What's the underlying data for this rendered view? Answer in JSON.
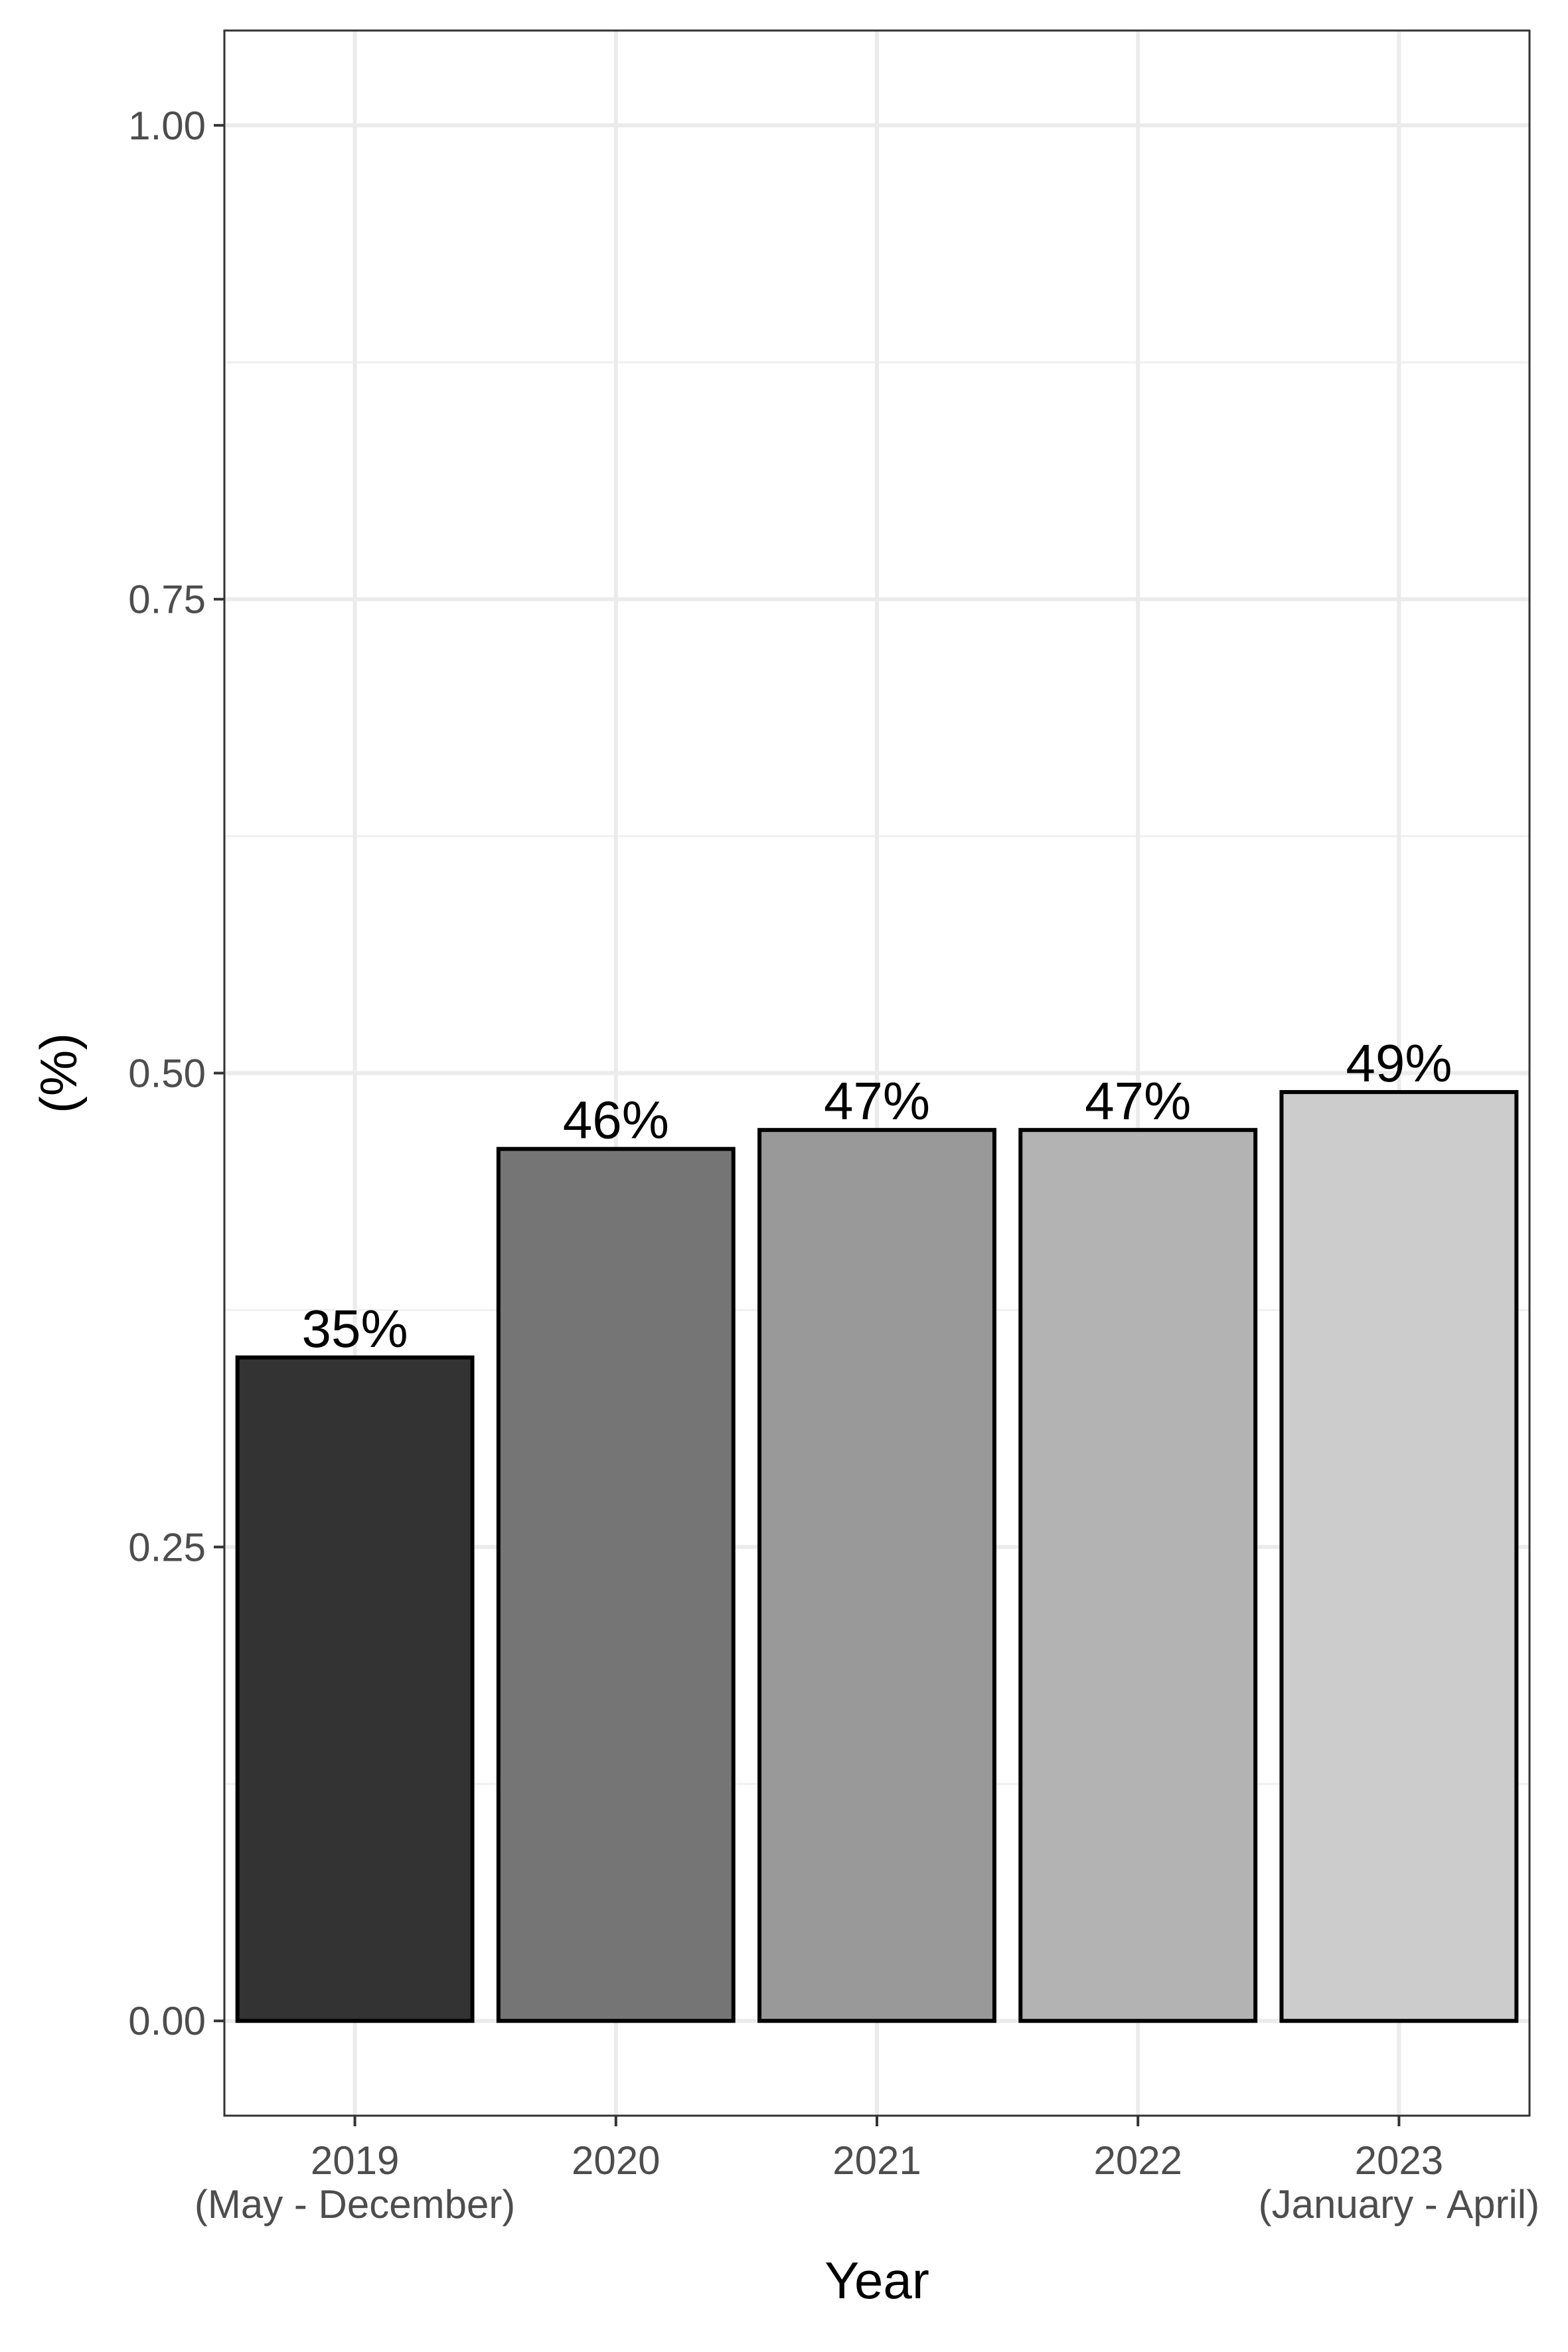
{
  "chart_data": {
    "type": "bar",
    "categories": [
      [
        "2019",
        "(May - December)"
      ],
      [
        "2020"
      ],
      [
        "2021"
      ],
      [
        "2022"
      ],
      [
        "2023",
        "(January - April)"
      ]
    ],
    "values": [
      0.35,
      0.46,
      0.47,
      0.47,
      0.49
    ],
    "data_labels": [
      "35%",
      "46%",
      "47%",
      "47%",
      "49%"
    ],
    "bar_colors": [
      "#333333",
      "#757575",
      "#999999",
      "#b3b3b3",
      "#cccccc"
    ],
    "bar_outline": "#000000",
    "xlabel": "Year",
    "ylabel": "(%)",
    "ylim": [
      -0.05,
      1.05
    ],
    "yticks": [
      0.0,
      0.25,
      0.5,
      0.75,
      1.0
    ],
    "ytick_labels": [
      "0.00",
      "0.25",
      "0.50",
      "0.75",
      "1.00"
    ],
    "grid": true,
    "legend": "none"
  }
}
